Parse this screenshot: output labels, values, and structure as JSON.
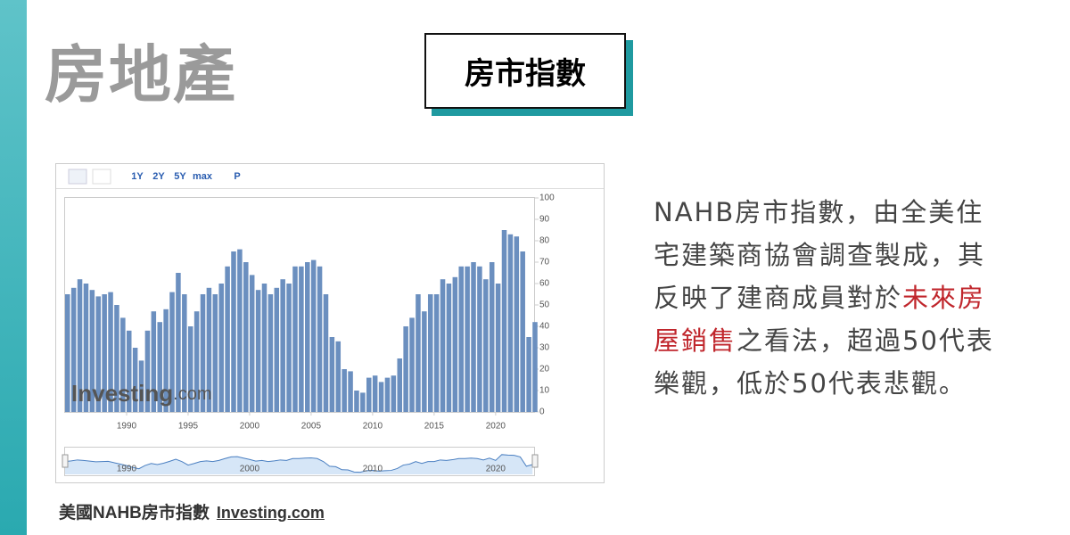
{
  "header": {
    "title": "房地產",
    "badge": "房市指數"
  },
  "paragraph": {
    "parts": [
      "NAHB房市指數，由全美住宅建築商協會調查製成，其反映了建商成員對於",
      "未來房屋銷售",
      "之看法，超過50代表樂觀，低於50代表悲觀。"
    ]
  },
  "caption": {
    "title": "美國NAHB房市指數",
    "source": "Investing.com"
  },
  "chart_data": {
    "type": "bar",
    "color": "#6b8fbf",
    "toolbar": [
      "1Y",
      "2Y",
      "5Y",
      "max",
      "P"
    ],
    "watermark": [
      "Investing",
      ".com"
    ],
    "x": [
      1985,
      1985.5,
      1986,
      1986.5,
      1987,
      1987.5,
      1988,
      1988.5,
      1989,
      1989.5,
      1990,
      1990.5,
      1991,
      1991.5,
      1992,
      1992.5,
      1993,
      1993.5,
      1994,
      1994.5,
      1995,
      1995.5,
      1996,
      1996.5,
      1997,
      1997.5,
      1998,
      1998.5,
      1999,
      1999.5,
      2000,
      2000.5,
      2001,
      2001.5,
      2002,
      2002.5,
      2003,
      2003.5,
      2004,
      2004.5,
      2005,
      2005.5,
      2006,
      2006.5,
      2007,
      2007.5,
      2008,
      2008.5,
      2009,
      2009.5,
      2010,
      2010.5,
      2011,
      2011.5,
      2012,
      2012.5,
      2013,
      2013.5,
      2014,
      2014.5,
      2015,
      2015.5,
      2016,
      2016.5,
      2017,
      2017.5,
      2018,
      2018.5,
      2019,
      2019.5,
      2020,
      2020.5,
      2021,
      2021.5,
      2022,
      2022.5,
      2023
    ],
    "values": [
      55,
      58,
      62,
      60,
      57,
      54,
      55,
      56,
      50,
      44,
      38,
      30,
      24,
      38,
      47,
      42,
      48,
      56,
      65,
      55,
      40,
      47,
      55,
      58,
      55,
      60,
      68,
      75,
      76,
      70,
      64,
      57,
      60,
      55,
      58,
      62,
      60,
      68,
      68,
      70,
      71,
      68,
      55,
      35,
      33,
      20,
      19,
      10,
      9,
      16,
      17,
      14,
      16,
      17,
      25,
      40,
      44,
      55,
      47,
      55,
      55,
      62,
      60,
      63,
      68,
      68,
      70,
      68,
      62,
      70,
      60,
      85,
      83,
      82,
      75,
      35,
      42
    ],
    "xlim": [
      1985,
      2023.2
    ],
    "xticks": [
      1990,
      1995,
      2000,
      2005,
      2010,
      2015,
      2020
    ],
    "ylim": [
      0,
      100
    ],
    "yticks": [
      0,
      10,
      20,
      30,
      40,
      50,
      60,
      70,
      80,
      90,
      100
    ],
    "grid": false,
    "navigator_xticks": [
      1990,
      2000,
      2010,
      2020
    ]
  }
}
